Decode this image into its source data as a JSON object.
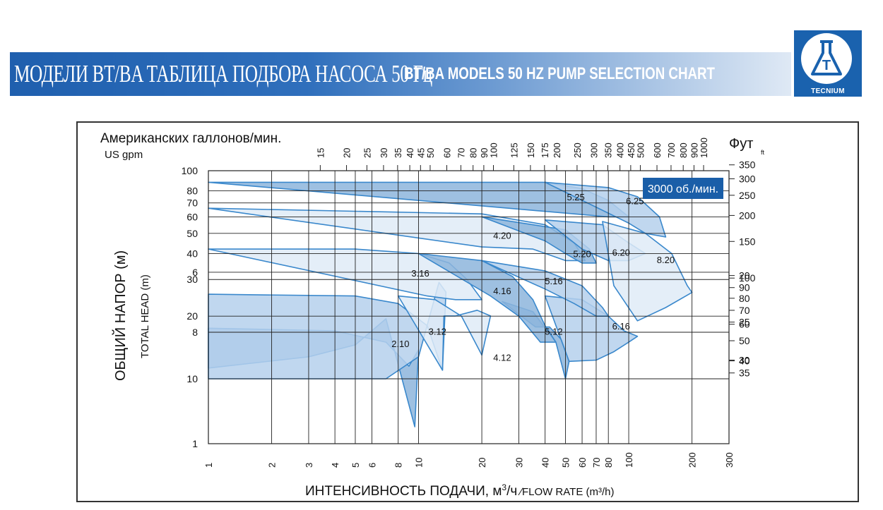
{
  "header": {
    "title_ru": "МОДЕЛИ BT/BA  ТАБЛИЦА ПОДБОРА НАСОСА 50 Гц",
    "title_en": "BT/BA MODELS 50 HZ PUMP SELECTION CHART",
    "logo_text": "TECNIUM",
    "logo_letter": "T"
  },
  "chart_data": {
    "type": "area",
    "gpm_label_ru": "Американских галлонов/мин.",
    "gpm_label_en": "US gpm",
    "ft_label": "Фут",
    "ft_sub": "ft",
    "ylabel_ru": "ОБЩИЙ НАПОР (м)",
    "ylabel_en": "TOTAL HEAD (m)",
    "xlabel_ru": "ИНТЕНСИВНОСТЬ ПОДАЧИ, м",
    "xlabel_sup": "3",
    "xlabel_ru2": "/ч",
    "xlabel_en": " ∕FLOW RATE (m³/h)",
    "speed_label": "3000 об./мин.",
    "x_scale": "log",
    "x_range": [
      1,
      300
    ],
    "y_range": [
      1,
      100
    ],
    "x_ticks": [
      "1",
      "2",
      "3",
      "4",
      "5",
      "6",
      "8",
      "10",
      "20",
      "30",
      "40",
      "50",
      "60",
      "70",
      "80",
      "100",
      "200",
      "300"
    ],
    "y_ticks": [
      "1",
      "6",
      "8",
      "10",
      "20",
      "30",
      "40",
      "50",
      "60",
      "70",
      "80",
      "100"
    ],
    "gpm_ticks": [
      "15",
      "20",
      "25",
      "30",
      "35",
      "40",
      "45",
      "50",
      "60",
      "70",
      "80",
      "90",
      "100",
      "125",
      "150",
      "175",
      "200",
      "250",
      "300",
      "350",
      "400",
      "450",
      "500",
      "600",
      "700",
      "800",
      "900",
      "1000"
    ],
    "ft_ticks": [
      "20",
      "25",
      "30",
      "35",
      "40",
      "50",
      "60",
      "70",
      "80",
      "90",
      "100",
      "150",
      "200",
      "250",
      "300",
      "350"
    ],
    "regions": [
      {
        "name": "2.10",
        "pts": [
          [
            1,
            17.5
          ],
          [
            4,
            17
          ],
          [
            7,
            15
          ],
          [
            9,
            11.5
          ],
          [
            10,
            8.7
          ],
          [
            9.6,
            5.6
          ],
          [
            7,
            7.5
          ],
          [
            5,
            8.5
          ],
          [
            3,
            9
          ],
          [
            1,
            9.5
          ]
        ]
      },
      {
        "name": "3.12",
        "pts": [
          [
            1,
            25.5
          ],
          [
            5,
            25
          ],
          [
            8,
            23
          ],
          [
            11,
            18
          ],
          [
            13,
            11
          ],
          [
            13.5,
            6.6
          ],
          [
            12.5,
            6.3
          ],
          [
            10,
            9
          ],
          [
            7,
            10
          ],
          [
            1,
            10
          ]
        ]
      },
      {
        "name": "4.12",
        "pts": [
          [
            8,
            25
          ],
          [
            12,
            24
          ],
          [
            16,
            20
          ],
          [
            20,
            13
          ],
          [
            22,
            7.4
          ],
          [
            19,
            7.2
          ],
          [
            15,
            7.4
          ],
          [
            13.2,
            7.4
          ],
          [
            13,
            11
          ]
        ]
      },
      {
        "name": "5.12",
        "pts": [
          [
            25,
            23.5
          ],
          [
            35,
            21
          ],
          [
            45,
            15
          ],
          [
            50,
            10
          ],
          [
            52,
            9.2
          ],
          [
            48,
            8.3
          ],
          [
            42,
            7.8
          ],
          [
            36,
            7.8
          ]
        ]
      },
      {
        "name": "6.16",
        "pts": [
          [
            40,
            25
          ],
          [
            60,
            24
          ],
          [
            80,
            20
          ],
          [
            95,
            17
          ],
          [
            110,
            16
          ],
          [
            100,
            15
          ],
          [
            85,
            13.5
          ],
          [
            70,
            12.3
          ],
          [
            52,
            9.2
          ]
        ]
      },
      {
        "name": "3.16",
        "pts": [
          [
            1,
            42
          ],
          [
            5,
            42
          ],
          [
            10,
            40
          ],
          [
            14,
            36
          ],
          [
            17,
            30
          ],
          [
            20,
            24
          ],
          [
            15,
            24
          ],
          [
            11,
            25
          ]
        ]
      },
      {
        "name": "4.16",
        "pts": [
          [
            10,
            40
          ],
          [
            20,
            37
          ],
          [
            28,
            31
          ],
          [
            35,
            24
          ],
          [
            40,
            18
          ],
          [
            45,
            15
          ],
          [
            38,
            15
          ],
          [
            30,
            20
          ],
          [
            22,
            25
          ]
        ]
      },
      {
        "name": "5.16",
        "pts": [
          [
            20,
            37
          ],
          [
            40,
            33
          ],
          [
            60,
            28
          ],
          [
            75,
            22
          ],
          [
            80,
            20
          ],
          [
            70,
            20
          ],
          [
            55,
            23
          ],
          [
            40,
            27
          ]
        ]
      },
      {
        "name": "4.20",
        "pts": [
          [
            1,
            66
          ],
          [
            20,
            62
          ],
          [
            40,
            55
          ],
          [
            55,
            45
          ],
          [
            62,
            37
          ],
          [
            50,
            37
          ],
          [
            35,
            42
          ],
          [
            20,
            43
          ]
        ]
      },
      {
        "name": "5.20",
        "pts": [
          [
            20,
            60
          ],
          [
            50,
            52
          ],
          [
            65,
            42
          ],
          [
            70,
            36
          ],
          [
            60,
            36
          ],
          [
            50,
            40
          ],
          [
            40,
            46
          ]
        ]
      },
      {
        "name": "6.20",
        "pts": [
          [
            40,
            58
          ],
          [
            75,
            55
          ],
          [
            100,
            45
          ],
          [
            120,
            40
          ],
          [
            100,
            37
          ],
          [
            80,
            37
          ],
          [
            60,
            42
          ]
        ]
      },
      {
        "name": "8.20",
        "pts": [
          [
            75,
            57
          ],
          [
            120,
            50
          ],
          [
            160,
            40
          ],
          [
            190,
            28
          ],
          [
            200,
            26
          ],
          [
            150,
            22
          ],
          [
            110,
            19
          ],
          [
            85,
            28
          ]
        ]
      },
      {
        "name": "5.25",
        "pts": [
          [
            1,
            88
          ],
          [
            40,
            88
          ],
          [
            60,
            82
          ],
          [
            80,
            72
          ],
          [
            100,
            60
          ],
          [
            80,
            60
          ],
          [
            55,
            62
          ]
        ]
      },
      {
        "name": "6.25",
        "pts": [
          [
            40,
            88
          ],
          [
            80,
            83
          ],
          [
            110,
            75
          ],
          [
            140,
            60
          ],
          [
            150,
            48
          ],
          [
            120,
            50
          ],
          [
            100,
            56
          ]
        ]
      }
    ],
    "label_positions": [
      {
        "name": "2.10",
        "at": [
          8.2,
          14.2
        ]
      },
      {
        "name": "3.12",
        "at": [
          12.3,
          16.3
        ]
      },
      {
        "name": "4.12",
        "at": [
          25,
          12.2
        ]
      },
      {
        "name": "5.12",
        "at": [
          44,
          16.3
        ]
      },
      {
        "name": "6.16",
        "at": [
          92,
          17.3
        ]
      },
      {
        "name": "3.16",
        "at": [
          10.2,
          31
        ]
      },
      {
        "name": "4.16",
        "at": [
          25,
          25.5
        ]
      },
      {
        "name": "5.16",
        "at": [
          44,
          28.5
        ]
      },
      {
        "name": "4.20",
        "at": [
          25,
          47
        ]
      },
      {
        "name": "5.20",
        "at": [
          60,
          38.5
        ]
      },
      {
        "name": "6.20",
        "at": [
          92,
          39
        ]
      },
      {
        "name": "8.20",
        "at": [
          150,
          36
        ]
      },
      {
        "name": "5.25",
        "at": [
          56,
          72
        ]
      },
      {
        "name": "6.25",
        "at": [
          107,
          69
        ]
      }
    ],
    "colors": {
      "dark": "#8db5dc",
      "mid": "#b5d0ec",
      "light": "#dfebf7",
      "edge": "#3a88cc",
      "speed_box": "#1a5ea8"
    }
  }
}
